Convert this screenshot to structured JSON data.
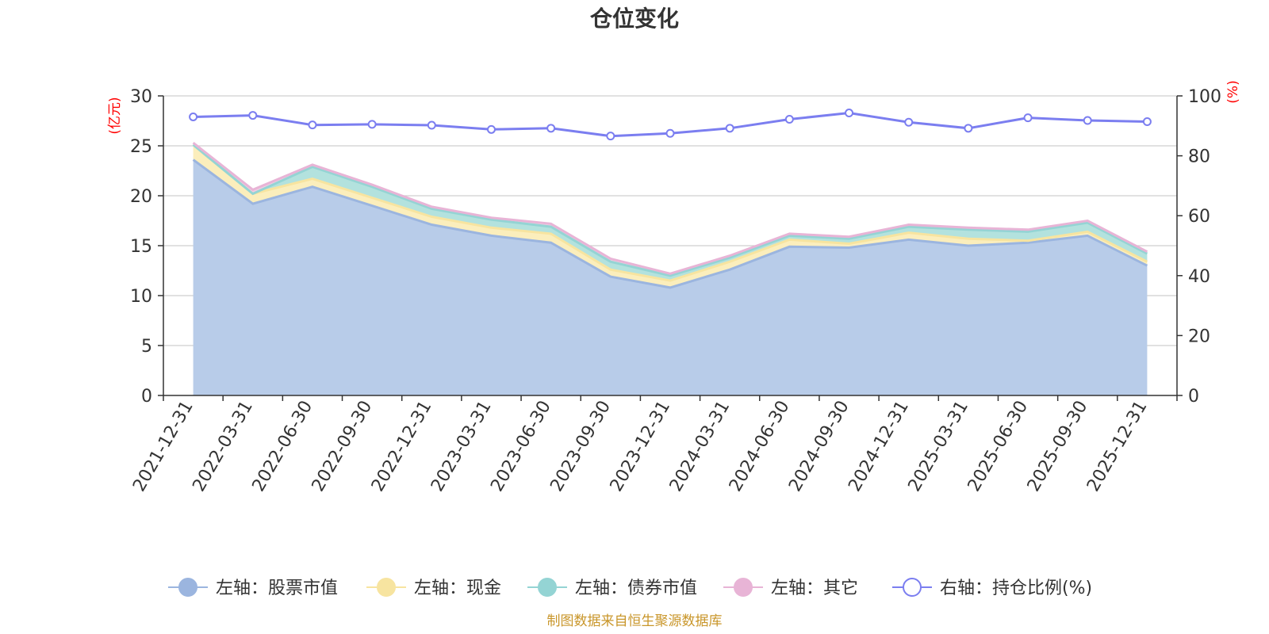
{
  "chart_data": {
    "type": "area",
    "title": "仓位变化",
    "left_axis_unit": "(亿元)",
    "right_axis_unit": "(%)",
    "ylim_left": [
      0,
      30
    ],
    "yticks_left": [
      0,
      5,
      10,
      15,
      20,
      25,
      30
    ],
    "ylim_right": [
      0,
      100
    ],
    "yticks_right": [
      0,
      20,
      40,
      60,
      80,
      100
    ],
    "categories": [
      "2021-12-31",
      "2022-03-31",
      "2022-06-30",
      "2022-09-30",
      "2022-12-31",
      "2023-03-31",
      "2023-06-30",
      "2023-09-30",
      "2023-12-31",
      "2024-03-31",
      "2024-06-30",
      "2024-09-30",
      "2024-12-31",
      "2025-03-31",
      "2025-06-30",
      "2025-09-30",
      "2025-12-31"
    ],
    "stacked_series": [
      {
        "name": "左轴：股票市值",
        "color": "#9bb5df",
        "fill": "#b8cce9",
        "values": [
          23.6,
          19.2,
          20.9,
          19.0,
          17.1,
          16.0,
          15.3,
          11.9,
          10.8,
          12.6,
          14.9,
          14.8,
          15.6,
          15.0,
          15.3,
          16.0,
          13.0
        ]
      },
      {
        "name": "左轴：现金",
        "color": "#f7e4a0",
        "fill": "#fbeebc",
        "values": [
          1.5,
          1.0,
          0.8,
          0.8,
          0.8,
          0.8,
          0.9,
          0.7,
          0.7,
          0.8,
          0.7,
          0.4,
          0.7,
          0.7,
          0.2,
          0.4,
          0.4
        ]
      },
      {
        "name": "左轴：债券市值",
        "color": "#94d4d4",
        "fill": "#b3e2de",
        "values": [
          0.0,
          0.0,
          1.2,
          1.1,
          0.8,
          0.8,
          0.7,
          0.8,
          0.5,
          0.4,
          0.4,
          0.5,
          0.6,
          0.9,
          0.9,
          0.9,
          0.8
        ]
      },
      {
        "name": "左轴：其它",
        "color": "#e8b4d6",
        "fill": "#f0cfe3",
        "values": [
          0.2,
          0.4,
          0.2,
          0.2,
          0.2,
          0.2,
          0.3,
          0.3,
          0.2,
          0.2,
          0.2,
          0.2,
          0.2,
          0.2,
          0.2,
          0.2,
          0.2
        ]
      }
    ],
    "line_series": {
      "name": "右轴：持仓比例(%)",
      "color": "#7b7ef0",
      "values": [
        93.0,
        93.5,
        90.3,
        90.5,
        90.2,
        88.8,
        89.2,
        86.6,
        87.5,
        89.2,
        92.2,
        94.3,
        91.2,
        89.2,
        92.7,
        91.8,
        91.4
      ]
    },
    "grid": true,
    "legend_position": "bottom-center",
    "source_note": "制图数据来自恒生聚源数据库"
  }
}
